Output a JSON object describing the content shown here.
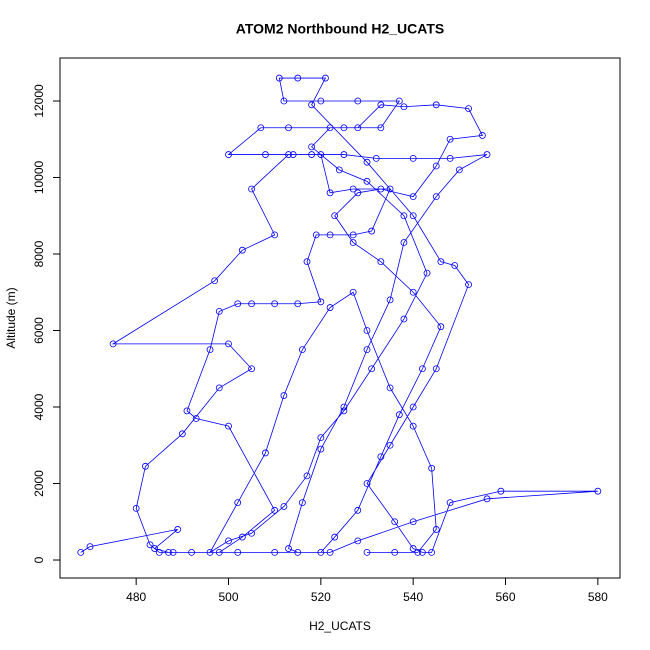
{
  "chart_data": {
    "type": "line",
    "title": "ATOM2 Northbound H2_UCATS",
    "xlabel": "H2_UCATS",
    "ylabel": "Altitude (m)",
    "x": [
      468,
      470,
      489,
      484,
      487,
      488,
      498,
      503,
      510,
      500,
      493,
      491,
      496,
      498,
      502,
      505,
      510,
      515,
      520,
      517,
      519,
      522,
      527,
      531,
      535,
      527,
      522,
      520,
      514,
      508,
      500,
      507,
      513,
      525,
      533,
      537,
      528,
      520,
      512,
      511,
      515,
      521,
      518,
      530,
      540,
      546,
      549,
      552,
      545,
      540,
      535,
      530,
      536,
      540,
      542,
      544,
      548,
      559,
      580,
      556,
      540,
      528,
      522,
      515,
      513,
      516,
      520,
      525,
      530,
      535,
      538,
      545,
      550,
      556,
      548,
      540,
      532,
      525,
      518,
      513,
      505,
      510,
      503,
      497,
      475,
      500,
      505,
      498,
      490,
      482,
      480,
      483,
      485,
      492,
      502,
      510,
      520,
      523,
      528,
      533,
      537,
      542,
      546,
      540,
      533,
      527,
      523,
      528,
      533,
      540,
      545,
      548,
      555,
      552,
      545,
      538,
      533,
      528,
      522,
      518,
      524,
      530,
      538,
      543,
      538,
      531,
      525,
      520,
      517,
      512,
      505,
      500,
      496,
      502,
      508,
      512,
      516,
      522,
      527,
      530,
      535,
      540,
      544,
      545,
      541,
      536,
      530
    ],
    "series": [
      {
        "color": "#0000ff",
        "values": [
          200,
          350,
          800,
          300,
          200,
          200,
          200,
          600,
          1300,
          3500,
          3700,
          3900,
          5500,
          6500,
          6700,
          6700,
          6700,
          6700,
          6750,
          7800,
          8500,
          8500,
          8500,
          8600,
          9700,
          9700,
          9600,
          10600,
          10600,
          10600,
          10600,
          11300,
          11300,
          11300,
          11300,
          12000,
          12000,
          12000,
          12000,
          12600,
          12600,
          12600,
          11900,
          10400,
          9000,
          7800,
          7700,
          7200,
          5000,
          4000,
          3000,
          2000,
          1000,
          300,
          200,
          200,
          1500,
          1800,
          1800,
          1600,
          1000,
          500,
          200,
          200,
          300,
          1500,
          2900,
          4000,
          5500,
          6800,
          8300,
          9500,
          10200,
          10600,
          10500,
          10500,
          10500,
          10600,
          10600,
          10600,
          9700,
          8500,
          8100,
          7300,
          5650,
          5650,
          5000,
          4500,
          3300,
          2450,
          1350,
          400,
          200,
          200,
          200,
          200,
          200,
          600,
          1300,
          2700,
          3800,
          5000,
          6100,
          7000,
          7800,
          8300,
          9000,
          9600,
          9700,
          9500,
          10300,
          11000,
          11100,
          11800,
          11900,
          11850,
          11900,
          11300,
          11300,
          10800,
          10200,
          9900,
          9000,
          7500,
          6300,
          5000,
          3900,
          3200,
          2200,
          1400,
          700,
          500,
          200,
          1500,
          2800,
          4300,
          5500,
          6600,
          7000,
          6000,
          4500,
          3500,
          2400,
          800,
          200,
          200,
          200
        ]
      }
    ],
    "xlim": [
      463.5,
      584.8
    ],
    "xticks": [
      480,
      500,
      520,
      540,
      560,
      580
    ],
    "ylim": [
      -470,
      13124
    ],
    "yticks": [
      0,
      2000,
      4000,
      6000,
      8000,
      10000,
      12000
    ]
  }
}
